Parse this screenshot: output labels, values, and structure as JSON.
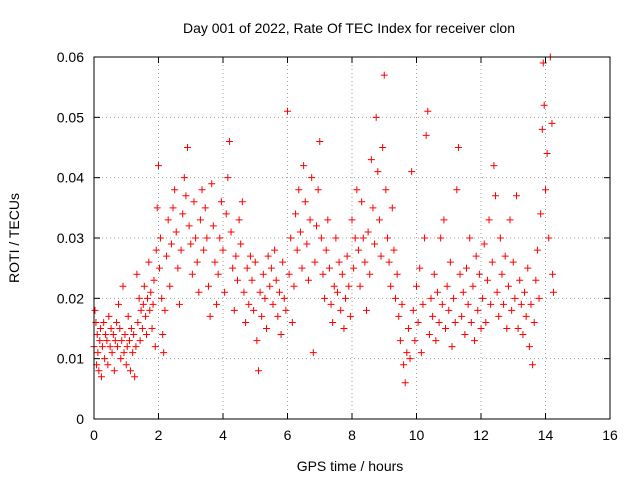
{
  "chart_data": {
    "type": "scatter",
    "title": "Day 001 of 2022, Rate Of TEC Index for receiver clon",
    "xlabel": "GPS time / hours",
    "ylabel": "ROTI / TECUs",
    "xlim": [
      0,
      16
    ],
    "ylim": [
      0,
      0.06
    ],
    "x_ticks": [
      0,
      2,
      4,
      6,
      8,
      10,
      12,
      14,
      16
    ],
    "x_tick_labels": [
      "0",
      "2",
      "4",
      "6",
      "8",
      "10",
      "12",
      "14",
      "16"
    ],
    "y_ticks": [
      0,
      0.01,
      0.02,
      0.03,
      0.04,
      0.05,
      0.06
    ],
    "y_tick_labels": [
      "0",
      "0.01",
      "0.02",
      "0.03",
      "0.04",
      "0.05",
      "0.06"
    ],
    "grid": true,
    "marker": "+",
    "color": "#ff0000",
    "series": [
      {
        "name": "ROTI",
        "points": [
          [
            0.0,
            0.012
          ],
          [
            0.03,
            0.018
          ],
          [
            0.06,
            0.016
          ],
          [
            0.08,
            0.009
          ],
          [
            0.1,
            0.014
          ],
          [
            0.12,
            0.011
          ],
          [
            0.15,
            0.008
          ],
          [
            0.18,
            0.013
          ],
          [
            0.2,
            0.015
          ],
          [
            0.23,
            0.007
          ],
          [
            0.26,
            0.012
          ],
          [
            0.3,
            0.016
          ],
          [
            0.33,
            0.01
          ],
          [
            0.36,
            0.014
          ],
          [
            0.4,
            0.013
          ],
          [
            0.43,
            0.009
          ],
          [
            0.46,
            0.017
          ],
          [
            0.5,
            0.012
          ],
          [
            0.53,
            0.015
          ],
          [
            0.56,
            0.011
          ],
          [
            0.6,
            0.014
          ],
          [
            0.63,
            0.008
          ],
          [
            0.66,
            0.013
          ],
          [
            0.7,
            0.016
          ],
          [
            0.73,
            0.012
          ],
          [
            0.76,
            0.019
          ],
          [
            0.8,
            0.015
          ],
          [
            0.83,
            0.01
          ],
          [
            0.86,
            0.013
          ],
          [
            0.9,
            0.022
          ],
          [
            0.93,
            0.011
          ],
          [
            0.96,
            0.014
          ],
          [
            1.0,
            0.009
          ],
          [
            1.03,
            0.012
          ],
          [
            1.06,
            0.017
          ],
          [
            1.1,
            0.013
          ],
          [
            1.13,
            0.008
          ],
          [
            1.16,
            0.015
          ],
          [
            1.2,
            0.011
          ],
          [
            1.23,
            0.014
          ],
          [
            1.26,
            0.007
          ],
          [
            1.3,
            0.012
          ],
          [
            1.33,
            0.024
          ],
          [
            1.36,
            0.016
          ],
          [
            1.4,
            0.02
          ],
          [
            1.43,
            0.013
          ],
          [
            1.46,
            0.018
          ],
          [
            1.5,
            0.015
          ],
          [
            1.53,
            0.019
          ],
          [
            1.56,
            0.022
          ],
          [
            1.6,
            0.017
          ],
          [
            1.63,
            0.014
          ],
          [
            1.66,
            0.02
          ],
          [
            1.7,
            0.026
          ],
          [
            1.73,
            0.018
          ],
          [
            1.76,
            0.021
          ],
          [
            1.8,
            0.015
          ],
          [
            1.83,
            0.019
          ],
          [
            1.86,
            0.023
          ],
          [
            1.9,
            0.012
          ],
          [
            1.93,
            0.028
          ],
          [
            1.96,
            0.035
          ],
          [
            2.0,
            0.042
          ],
          [
            2.03,
            0.025
          ],
          [
            2.06,
            0.03
          ],
          [
            2.1,
            0.02
          ],
          [
            2.13,
            0.014
          ],
          [
            2.16,
            0.011
          ],
          [
            2.2,
            0.018
          ],
          [
            2.25,
            0.027
          ],
          [
            2.3,
            0.033
          ],
          [
            2.35,
            0.022
          ],
          [
            2.4,
            0.029
          ],
          [
            2.45,
            0.035
          ],
          [
            2.5,
            0.038
          ],
          [
            2.55,
            0.031
          ],
          [
            2.6,
            0.025
          ],
          [
            2.65,
            0.019
          ],
          [
            2.7,
            0.028
          ],
          [
            2.75,
            0.034
          ],
          [
            2.8,
            0.04
          ],
          [
            2.85,
            0.037
          ],
          [
            2.9,
            0.045
          ],
          [
            2.95,
            0.032
          ],
          [
            3.0,
            0.029
          ],
          [
            3.05,
            0.024
          ],
          [
            3.1,
            0.036
          ],
          [
            3.15,
            0.03
          ],
          [
            3.2,
            0.026
          ],
          [
            3.25,
            0.021
          ],
          [
            3.3,
            0.033
          ],
          [
            3.35,
            0.038
          ],
          [
            3.4,
            0.028
          ],
          [
            3.45,
            0.035
          ],
          [
            3.5,
            0.03
          ],
          [
            3.55,
            0.022
          ],
          [
            3.6,
            0.017
          ],
          [
            3.65,
            0.039
          ],
          [
            3.7,
            0.032
          ],
          [
            3.75,
            0.026
          ],
          [
            3.8,
            0.019
          ],
          [
            3.85,
            0.024
          ],
          [
            3.9,
            0.03
          ],
          [
            3.95,
            0.036
          ],
          [
            4.0,
            0.028
          ],
          [
            4.05,
            0.021
          ],
          [
            4.1,
            0.034
          ],
          [
            4.15,
            0.04
          ],
          [
            4.2,
            0.046
          ],
          [
            4.25,
            0.031
          ],
          [
            4.3,
            0.025
          ],
          [
            4.35,
            0.018
          ],
          [
            4.4,
            0.027
          ],
          [
            4.45,
            0.023
          ],
          [
            4.5,
            0.033
          ],
          [
            4.55,
            0.029
          ],
          [
            4.6,
            0.036
          ],
          [
            4.65,
            0.021
          ],
          [
            4.7,
            0.016
          ],
          [
            4.75,
            0.025
          ],
          [
            4.8,
            0.019
          ],
          [
            4.85,
            0.027
          ],
          [
            4.9,
            0.023
          ],
          [
            4.95,
            0.018
          ],
          [
            5.0,
            0.026
          ],
          [
            5.05,
            0.013
          ],
          [
            5.1,
            0.008
          ],
          [
            5.15,
            0.021
          ],
          [
            5.2,
            0.017
          ],
          [
            5.25,
            0.024
          ],
          [
            5.3,
            0.02
          ],
          [
            5.35,
            0.015
          ],
          [
            5.4,
            0.027
          ],
          [
            5.45,
            0.022
          ],
          [
            5.5,
            0.025
          ],
          [
            5.55,
            0.019
          ],
          [
            5.6,
            0.028
          ],
          [
            5.65,
            0.023
          ],
          [
            5.7,
            0.017
          ],
          [
            5.75,
            0.021
          ],
          [
            5.8,
            0.014
          ],
          [
            5.85,
            0.026
          ],
          [
            5.9,
            0.02
          ],
          [
            5.95,
            0.018
          ],
          [
            6.0,
            0.051
          ],
          [
            6.05,
            0.024
          ],
          [
            6.1,
            0.03
          ],
          [
            6.15,
            0.016
          ],
          [
            6.2,
            0.022
          ],
          [
            6.25,
            0.034
          ],
          [
            6.3,
            0.028
          ],
          [
            6.35,
            0.038
          ],
          [
            6.4,
            0.031
          ],
          [
            6.45,
            0.025
          ],
          [
            6.5,
            0.042
          ],
          [
            6.55,
            0.036
          ],
          [
            6.6,
            0.029
          ],
          [
            6.65,
            0.023
          ],
          [
            6.7,
            0.033
          ],
          [
            6.75,
            0.04
          ],
          [
            6.8,
            0.011
          ],
          [
            6.85,
            0.026
          ],
          [
            6.9,
            0.032
          ],
          [
            6.95,
            0.038
          ],
          [
            7.0,
            0.046
          ],
          [
            7.05,
            0.03
          ],
          [
            7.1,
            0.024
          ],
          [
            7.15,
            0.02
          ],
          [
            7.2,
            0.028
          ],
          [
            7.25,
            0.033
          ],
          [
            7.3,
            0.025
          ],
          [
            7.35,
            0.019
          ],
          [
            7.4,
            0.016
          ],
          [
            7.45,
            0.022
          ],
          [
            7.5,
            0.03
          ],
          [
            7.55,
            0.021
          ],
          [
            7.6,
            0.026
          ],
          [
            7.65,
            0.018
          ],
          [
            7.7,
            0.024
          ],
          [
            7.75,
            0.015
          ],
          [
            7.8,
            0.02
          ],
          [
            7.85,
            0.027
          ],
          [
            7.9,
            0.022
          ],
          [
            7.95,
            0.017
          ],
          [
            8.0,
            0.033
          ],
          [
            8.05,
            0.025
          ],
          [
            8.1,
            0.03
          ],
          [
            8.15,
            0.038
          ],
          [
            8.2,
            0.028
          ],
          [
            8.25,
            0.022
          ],
          [
            8.3,
            0.036
          ],
          [
            8.35,
            0.03
          ],
          [
            8.4,
            0.026
          ],
          [
            8.45,
            0.018
          ],
          [
            8.5,
            0.031
          ],
          [
            8.55,
            0.024
          ],
          [
            8.6,
            0.043
          ],
          [
            8.65,
            0.035
          ],
          [
            8.7,
            0.029
          ],
          [
            8.75,
            0.05
          ],
          [
            8.8,
            0.041
          ],
          [
            8.85,
            0.033
          ],
          [
            8.9,
            0.027
          ],
          [
            8.95,
            0.045
          ],
          [
            9.0,
            0.057
          ],
          [
            9.05,
            0.038
          ],
          [
            9.1,
            0.03
          ],
          [
            9.15,
            0.026
          ],
          [
            9.2,
            0.022
          ],
          [
            9.25,
            0.035
          ],
          [
            9.3,
            0.028
          ],
          [
            9.35,
            0.02
          ],
          [
            9.4,
            0.024
          ],
          [
            9.45,
            0.017
          ],
          [
            9.5,
            0.013
          ],
          [
            9.55,
            0.019
          ],
          [
            9.6,
            0.009
          ],
          [
            9.65,
            0.006
          ],
          [
            9.7,
            0.011
          ],
          [
            9.75,
            0.015
          ],
          [
            9.8,
            0.01
          ],
          [
            9.85,
            0.041
          ],
          [
            9.9,
            0.018
          ],
          [
            9.95,
            0.013
          ],
          [
            10.0,
            0.022
          ],
          [
            10.05,
            0.016
          ],
          [
            10.1,
            0.025
          ],
          [
            10.15,
            0.011
          ],
          [
            10.2,
            0.019
          ],
          [
            10.25,
            0.03
          ],
          [
            10.3,
            0.047
          ],
          [
            10.35,
            0.051
          ],
          [
            10.4,
            0.014
          ],
          [
            10.45,
            0.02
          ],
          [
            10.5,
            0.017
          ],
          [
            10.55,
            0.024
          ],
          [
            10.6,
            0.013
          ],
          [
            10.65,
            0.021
          ],
          [
            10.7,
            0.016
          ],
          [
            10.75,
            0.03
          ],
          [
            10.8,
            0.019
          ],
          [
            10.85,
            0.033
          ],
          [
            10.9,
            0.015
          ],
          [
            10.95,
            0.022
          ],
          [
            11.0,
            0.018
          ],
          [
            11.05,
            0.026
          ],
          [
            11.1,
            0.012
          ],
          [
            11.15,
            0.02
          ],
          [
            11.2,
            0.016
          ],
          [
            11.25,
            0.038
          ],
          [
            11.3,
            0.045
          ],
          [
            11.35,
            0.024
          ],
          [
            11.4,
            0.017
          ],
          [
            11.45,
            0.021
          ],
          [
            11.5,
            0.014
          ],
          [
            11.55,
            0.025
          ],
          [
            11.6,
            0.019
          ],
          [
            11.65,
            0.03
          ],
          [
            11.7,
            0.016
          ],
          [
            11.75,
            0.022
          ],
          [
            11.8,
            0.013
          ],
          [
            11.85,
            0.027
          ],
          [
            11.9,
            0.018
          ],
          [
            11.95,
            0.024
          ],
          [
            12.0,
            0.015
          ],
          [
            12.05,
            0.02
          ],
          [
            12.1,
            0.029
          ],
          [
            12.15,
            0.016
          ],
          [
            12.2,
            0.023
          ],
          [
            12.25,
            0.033
          ],
          [
            12.3,
            0.019
          ],
          [
            12.35,
            0.026
          ],
          [
            12.4,
            0.042
          ],
          [
            12.45,
            0.037
          ],
          [
            12.5,
            0.021
          ],
          [
            12.55,
            0.017
          ],
          [
            12.6,
            0.03
          ],
          [
            12.65,
            0.024
          ],
          [
            12.7,
            0.019
          ],
          [
            12.75,
            0.027
          ],
          [
            12.8,
            0.015
          ],
          [
            12.85,
            0.022
          ],
          [
            12.9,
            0.033
          ],
          [
            12.95,
            0.018
          ],
          [
            13.0,
            0.026
          ],
          [
            13.05,
            0.02
          ],
          [
            13.1,
            0.037
          ],
          [
            13.15,
            0.015
          ],
          [
            13.2,
            0.023
          ],
          [
            13.25,
            0.019
          ],
          [
            13.3,
            0.014
          ],
          [
            13.35,
            0.021
          ],
          [
            13.4,
            0.017
          ],
          [
            13.45,
            0.025
          ],
          [
            13.5,
            0.012
          ],
          [
            13.55,
            0.019
          ],
          [
            13.6,
            0.009
          ],
          [
            13.65,
            0.016
          ],
          [
            13.7,
            0.023
          ],
          [
            13.75,
            0.028
          ],
          [
            13.8,
            0.02
          ],
          [
            13.85,
            0.034
          ],
          [
            13.9,
            0.048
          ],
          [
            13.93,
            0.059
          ],
          [
            13.96,
            0.052
          ],
          [
            14.0,
            0.038
          ],
          [
            14.05,
            0.044
          ],
          [
            14.1,
            0.03
          ],
          [
            14.15,
            0.06
          ],
          [
            14.2,
            0.049
          ],
          [
            14.22,
            0.024
          ],
          [
            14.25,
            0.021
          ]
        ]
      }
    ]
  }
}
